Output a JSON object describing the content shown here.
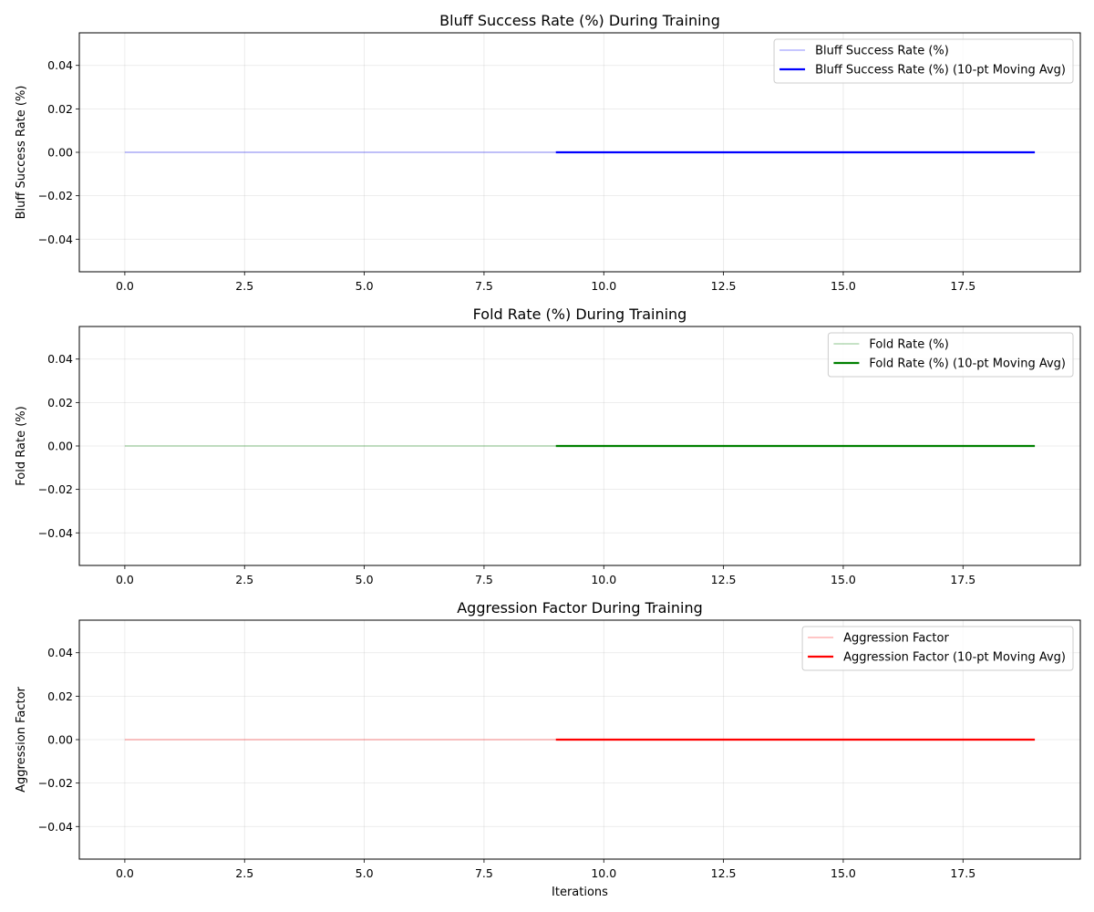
{
  "chart_data": [
    {
      "type": "line",
      "title": "Bluff Success Rate (%) During Training",
      "xlabel": "",
      "ylabel": "Bluff Success Rate (%)",
      "xlim": [
        -0.95,
        19.95
      ],
      "ylim": [
        -0.055,
        0.055
      ],
      "xticks": [
        0.0,
        2.5,
        5.0,
        7.5,
        10.0,
        12.5,
        15.0,
        17.5
      ],
      "xtick_labels": [
        "0.0",
        "2.5",
        "5.0",
        "7.5",
        "10.0",
        "12.5",
        "15.0",
        "17.5"
      ],
      "yticks": [
        -0.04,
        -0.02,
        0.0,
        0.02,
        0.04
      ],
      "ytick_labels": [
        "−0.04",
        "−0.02",
        "0.00",
        "0.02",
        "0.04"
      ],
      "grid": true,
      "legend_position": "top-right",
      "series": [
        {
          "name": "Bluff Success Rate (%)",
          "color": "#0000ff",
          "alpha": 0.3,
          "x": [
            0,
            1,
            2,
            3,
            4,
            5,
            6,
            7,
            8,
            9,
            10,
            11,
            12,
            13,
            14,
            15,
            16,
            17,
            18,
            19
          ],
          "y": [
            0,
            0,
            0,
            0,
            0,
            0,
            0,
            0,
            0,
            0,
            0,
            0,
            0,
            0,
            0,
            0,
            0,
            0,
            0,
            0
          ]
        },
        {
          "name": "Bluff Success Rate (%) (10-pt Moving Avg)",
          "color": "#0000ff",
          "alpha": 1,
          "x": [
            9,
            10,
            11,
            12,
            13,
            14,
            15,
            16,
            17,
            18,
            19
          ],
          "y": [
            0,
            0,
            0,
            0,
            0,
            0,
            0,
            0,
            0,
            0,
            0
          ]
        }
      ]
    },
    {
      "type": "line",
      "title": "Fold Rate (%) During Training",
      "xlabel": "",
      "ylabel": "Fold Rate (%)",
      "xlim": [
        -0.95,
        19.95
      ],
      "ylim": [
        -0.055,
        0.055
      ],
      "xticks": [
        0.0,
        2.5,
        5.0,
        7.5,
        10.0,
        12.5,
        15.0,
        17.5
      ],
      "xtick_labels": [
        "0.0",
        "2.5",
        "5.0",
        "7.5",
        "10.0",
        "12.5",
        "15.0",
        "17.5"
      ],
      "yticks": [
        -0.04,
        -0.02,
        0.0,
        0.02,
        0.04
      ],
      "ytick_labels": [
        "−0.04",
        "−0.02",
        "0.00",
        "0.02",
        "0.04"
      ],
      "grid": true,
      "legend_position": "top-right",
      "series": [
        {
          "name": "Fold Rate (%)",
          "color": "#008000",
          "alpha": 0.3,
          "x": [
            0,
            1,
            2,
            3,
            4,
            5,
            6,
            7,
            8,
            9,
            10,
            11,
            12,
            13,
            14,
            15,
            16,
            17,
            18,
            19
          ],
          "y": [
            0,
            0,
            0,
            0,
            0,
            0,
            0,
            0,
            0,
            0,
            0,
            0,
            0,
            0,
            0,
            0,
            0,
            0,
            0,
            0
          ]
        },
        {
          "name": "Fold Rate (%) (10-pt Moving Avg)",
          "color": "#008000",
          "alpha": 1,
          "x": [
            9,
            10,
            11,
            12,
            13,
            14,
            15,
            16,
            17,
            18,
            19
          ],
          "y": [
            0,
            0,
            0,
            0,
            0,
            0,
            0,
            0,
            0,
            0,
            0
          ]
        }
      ]
    },
    {
      "type": "line",
      "title": "Aggression Factor During Training",
      "xlabel": "Iterations",
      "ylabel": "Aggression Factor",
      "xlim": [
        -0.95,
        19.95
      ],
      "ylim": [
        -0.055,
        0.055
      ],
      "xticks": [
        0.0,
        2.5,
        5.0,
        7.5,
        10.0,
        12.5,
        15.0,
        17.5
      ],
      "xtick_labels": [
        "0.0",
        "2.5",
        "5.0",
        "7.5",
        "10.0",
        "12.5",
        "15.0",
        "17.5"
      ],
      "yticks": [
        -0.04,
        -0.02,
        0.0,
        0.02,
        0.04
      ],
      "ytick_labels": [
        "−0.04",
        "−0.02",
        "0.00",
        "0.02",
        "0.04"
      ],
      "grid": true,
      "legend_position": "top-right",
      "series": [
        {
          "name": "Aggression Factor",
          "color": "#ff0000",
          "alpha": 0.3,
          "x": [
            0,
            1,
            2,
            3,
            4,
            5,
            6,
            7,
            8,
            9,
            10,
            11,
            12,
            13,
            14,
            15,
            16,
            17,
            18,
            19
          ],
          "y": [
            0,
            0,
            0,
            0,
            0,
            0,
            0,
            0,
            0,
            0,
            0,
            0,
            0,
            0,
            0,
            0,
            0,
            0,
            0,
            0
          ]
        },
        {
          "name": "Aggression Factor (10-pt Moving Avg)",
          "color": "#ff0000",
          "alpha": 1,
          "x": [
            9,
            10,
            11,
            12,
            13,
            14,
            15,
            16,
            17,
            18,
            19
          ],
          "y": [
            0,
            0,
            0,
            0,
            0,
            0,
            0,
            0,
            0,
            0,
            0
          ]
        }
      ]
    }
  ]
}
